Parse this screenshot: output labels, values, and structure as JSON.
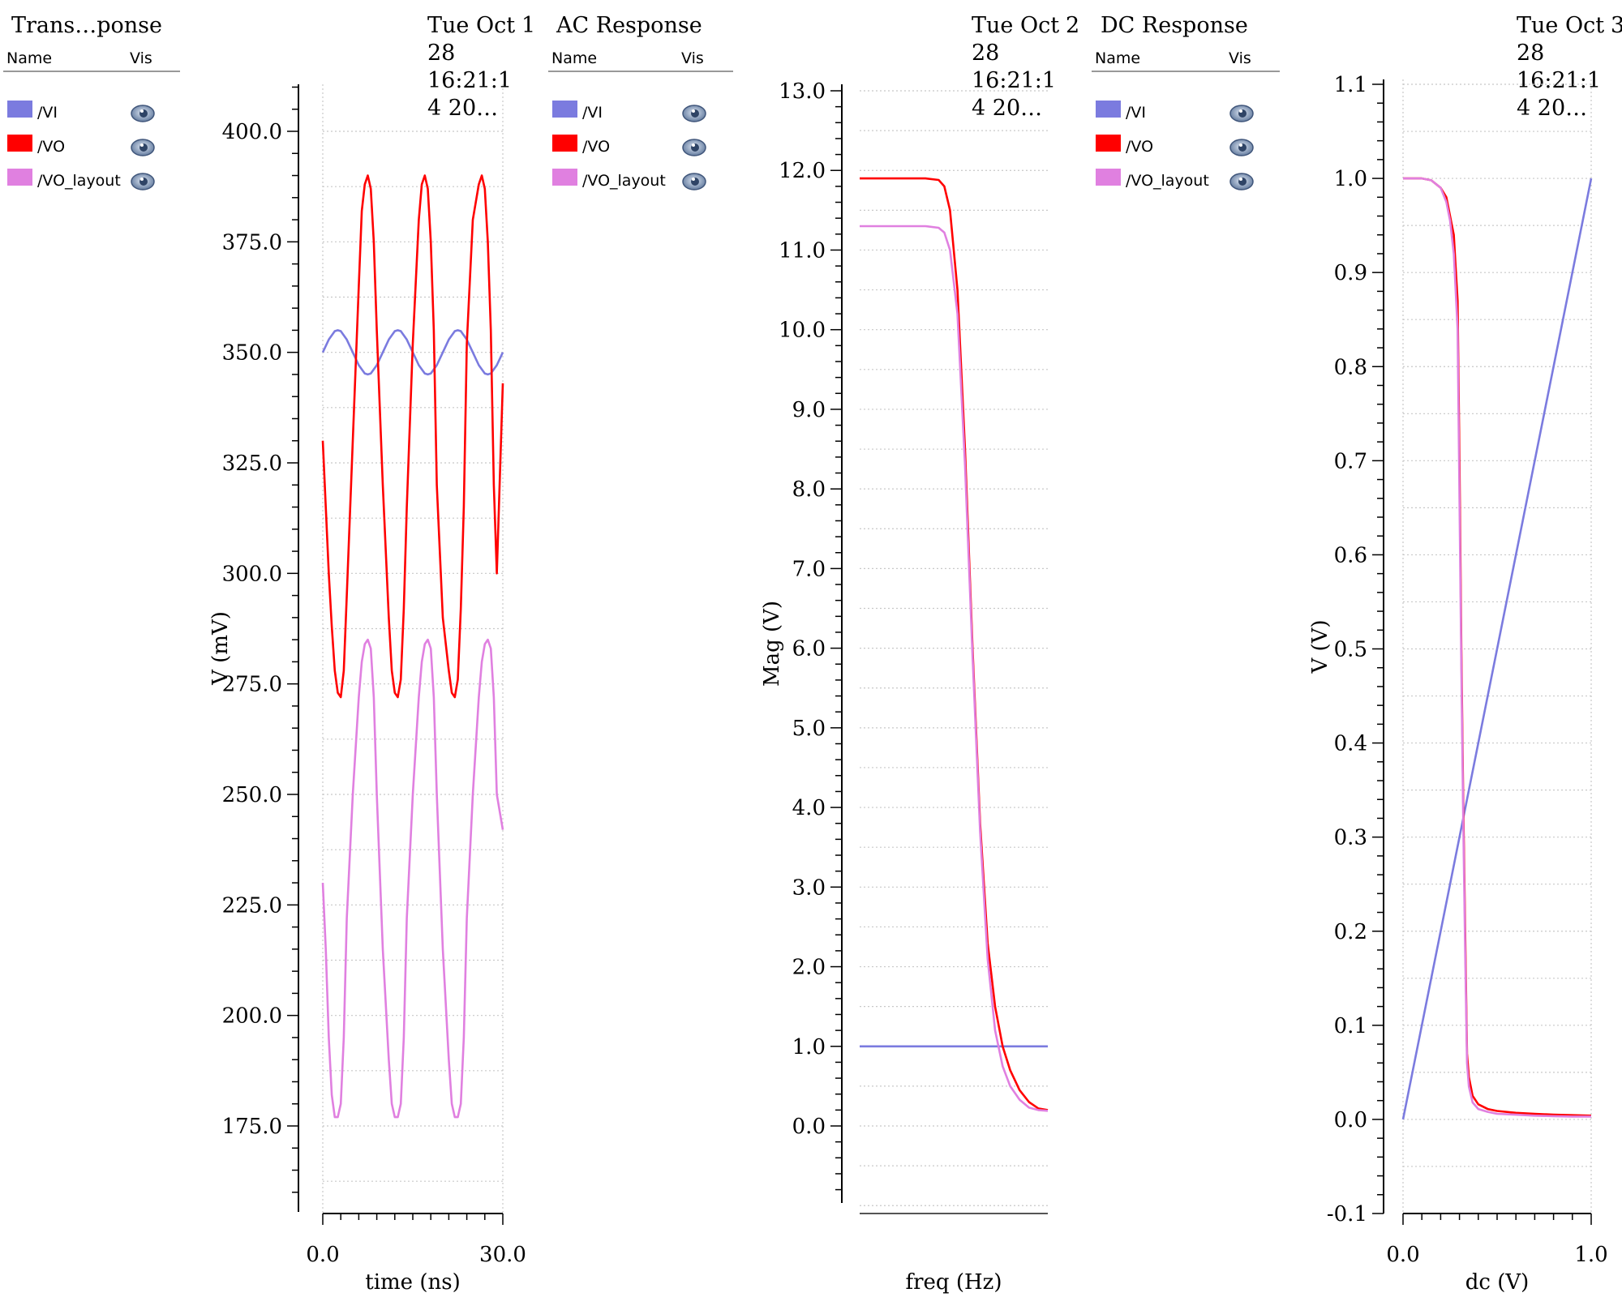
{
  "panels": [
    {
      "title": "Trans…ponse",
      "index": "1",
      "timestamp": [
        "Tue Oct",
        "28",
        "16:21:1",
        "4 20…"
      ],
      "legend": {
        "name_header": "Name",
        "vis_header": "Vis",
        "items": [
          {
            "label": "/VI",
            "color": "#7b7bdf",
            "icon": "eye-icon"
          },
          {
            "label": "/VO",
            "color": "#ff0000",
            "icon": "eye-icon"
          },
          {
            "label": "/VO_layout",
            "color": "#e080e0",
            "icon": "eye-icon"
          }
        ]
      }
    },
    {
      "title": "AC Response",
      "index": "2",
      "timestamp": [
        "Tue Oct",
        "28",
        "16:21:1",
        "4 20…"
      ],
      "legend": {
        "name_header": "Name",
        "vis_header": "Vis",
        "items": [
          {
            "label": "/VI",
            "color": "#7b7bdf",
            "icon": "eye-icon"
          },
          {
            "label": "/VO",
            "color": "#ff0000",
            "icon": "eye-icon"
          },
          {
            "label": "/VO_layout",
            "color": "#e080e0",
            "icon": "eye-icon"
          }
        ]
      }
    },
    {
      "title": "DC Response",
      "index": "3",
      "timestamp": [
        "Tue Oct",
        "28",
        "16:21:1",
        "4 20…"
      ],
      "legend": {
        "name_header": "Name",
        "vis_header": "Vis",
        "items": [
          {
            "label": "/VI",
            "color": "#7b7bdf",
            "icon": "eye-icon"
          },
          {
            "label": "/VO",
            "color": "#ff0000",
            "icon": "eye-icon"
          },
          {
            "label": "/VO_layout",
            "color": "#e080e0",
            "icon": "eye-icon"
          }
        ]
      }
    }
  ],
  "chart_data": [
    {
      "type": "line",
      "title": "Trans…ponse",
      "xlabel": "time (ns)",
      "ylabel": "V (mV)",
      "xlim": [
        0,
        30
      ],
      "ylim": [
        148,
        412
      ],
      "x_ticks": [
        {
          "v": 0,
          "label": "0.0"
        },
        {
          "v": 30,
          "label": "30.0"
        }
      ],
      "y_ticks": [
        {
          "v": 175,
          "label": "175.0"
        },
        {
          "v": 200,
          "label": "200.0"
        },
        {
          "v": 225,
          "label": "225.0"
        },
        {
          "v": 250,
          "label": "250.0"
        },
        {
          "v": 275,
          "label": "275.0"
        },
        {
          "v": 300,
          "label": "300.0"
        },
        {
          "v": 325,
          "label": "325.0"
        },
        {
          "v": 350,
          "label": "350.0"
        },
        {
          "v": 375,
          "label": "375.0"
        },
        {
          "v": 400,
          "label": "400.0"
        }
      ],
      "grid": true,
      "series": [
        {
          "name": "/VI",
          "color": "#7b7bdf",
          "x": [
            0,
            1,
            2,
            2.5,
            3,
            4,
            5,
            6,
            7,
            7.5,
            8,
            9,
            10,
            11,
            12,
            12.5,
            13,
            14,
            15,
            16,
            17,
            17.5,
            18,
            19,
            20,
            21,
            22,
            22.5,
            23,
            24,
            25,
            26,
            27,
            27.5,
            28,
            29,
            30
          ],
          "y": [
            350,
            352.9,
            354.8,
            355,
            354.8,
            352.9,
            350,
            347.1,
            345.2,
            345,
            345.2,
            347.1,
            350,
            352.9,
            354.8,
            355,
            354.8,
            352.9,
            350,
            347.1,
            345.2,
            345,
            345.2,
            347.1,
            350,
            352.9,
            354.8,
            355,
            354.8,
            352.9,
            350,
            347.1,
            345.2,
            345,
            345.2,
            347.1,
            350
          ]
        },
        {
          "name": "/VO",
          "color": "#ff0000",
          "x": [
            0,
            0.5,
            1,
            1.5,
            2,
            2.5,
            3,
            3.5,
            4,
            5,
            6,
            6.5,
            7,
            7.5,
            8,
            8.5,
            9,
            10,
            11,
            11.5,
            12,
            12.5,
            13,
            13.5,
            14,
            15,
            16,
            16.5,
            17,
            17.5,
            18,
            18.5,
            19,
            20,
            21,
            21.5,
            22,
            22.5,
            23,
            23.5,
            24,
            25,
            26,
            26.5,
            27,
            27.5,
            28,
            28.5,
            29,
            30
          ],
          "y": [
            330,
            315,
            300,
            288,
            278,
            273,
            272,
            278,
            295,
            330,
            365,
            382,
            388,
            390,
            387,
            375,
            355,
            320,
            290,
            278,
            273,
            272,
            276,
            292,
            315,
            352,
            380,
            388,
            390,
            387,
            375,
            355,
            320,
            290,
            278,
            273,
            272,
            276,
            292,
            315,
            352,
            380,
            388,
            390,
            387,
            375,
            355,
            320,
            300,
            343
          ]
        },
        {
          "name": "/VO_layout",
          "color": "#e080e0",
          "x": [
            0,
            0.5,
            1,
            1.5,
            2,
            2.5,
            3,
            3.5,
            4,
            5,
            6,
            6.5,
            7,
            7.5,
            8,
            8.5,
            9,
            10,
            11,
            11.5,
            12,
            12.5,
            13,
            13.5,
            14,
            15,
            16,
            16.5,
            17,
            17.5,
            18,
            18.5,
            19,
            20,
            21,
            21.5,
            22,
            22.5,
            23,
            23.5,
            24,
            25,
            26,
            26.5,
            27,
            27.5,
            28,
            28.5,
            29,
            30
          ],
          "y": [
            230,
            215,
            195,
            182,
            177,
            177,
            180,
            195,
            222,
            250,
            272,
            280,
            284,
            285,
            283,
            272,
            250,
            215,
            190,
            180,
            177,
            177,
            180,
            195,
            222,
            250,
            272,
            280,
            284,
            285,
            283,
            272,
            250,
            215,
            190,
            180,
            177,
            177,
            180,
            195,
            222,
            250,
            272,
            280,
            284,
            285,
            283,
            272,
            250,
            242
          ]
        }
      ]
    },
    {
      "type": "line",
      "title": "AC Response",
      "xlabel": "freq (Hz)",
      "ylabel": "Mag (V)",
      "xscale": "log",
      "ylim": [
        -1.0,
        13.1
      ],
      "y_ticks": [
        {
          "v": 0,
          "label": "0.0"
        },
        {
          "v": 1,
          "label": "1.0"
        },
        {
          "v": 2,
          "label": "2.0"
        },
        {
          "v": 3,
          "label": "3.0"
        },
        {
          "v": 4,
          "label": "4.0"
        },
        {
          "v": 5,
          "label": "5.0"
        },
        {
          "v": 6,
          "label": "6.0"
        },
        {
          "v": 7,
          "label": "7.0"
        },
        {
          "v": 8,
          "label": "8.0"
        },
        {
          "v": 9,
          "label": "9.0"
        },
        {
          "v": 10,
          "label": "10.0"
        },
        {
          "v": 11,
          "label": "11.0"
        },
        {
          "v": 12,
          "label": "12.0"
        },
        {
          "v": 13,
          "label": "13.0"
        }
      ],
      "grid": true,
      "series": [
        {
          "name": "/VI",
          "color": "#7b7bdf",
          "x": [
            0,
            1
          ],
          "y": [
            1.0,
            1.0
          ]
        },
        {
          "name": "/VO",
          "color": "#ff0000",
          "x": [
            0,
            0.2,
            0.35,
            0.42,
            0.45,
            0.48,
            0.52,
            0.56,
            0.6,
            0.64,
            0.68,
            0.72,
            0.76,
            0.8,
            0.85,
            0.9,
            0.95,
            1.0
          ],
          "y": [
            11.9,
            11.9,
            11.9,
            11.88,
            11.8,
            11.5,
            10.5,
            8.5,
            6.0,
            3.8,
            2.3,
            1.5,
            1.0,
            0.7,
            0.45,
            0.3,
            0.22,
            0.2
          ]
        },
        {
          "name": "/VO_layout",
          "color": "#e080e0",
          "x": [
            0,
            0.2,
            0.35,
            0.42,
            0.45,
            0.48,
            0.52,
            0.56,
            0.6,
            0.64,
            0.68,
            0.72,
            0.76,
            0.8,
            0.85,
            0.9,
            0.95,
            1.0
          ],
          "y": [
            11.3,
            11.3,
            11.3,
            11.28,
            11.22,
            11.0,
            10.2,
            8.3,
            5.9,
            3.7,
            2.1,
            1.2,
            0.75,
            0.5,
            0.33,
            0.23,
            0.2,
            0.19
          ]
        }
      ]
    },
    {
      "type": "line",
      "title": "DC Response",
      "xlabel": "dc (V)",
      "ylabel": "V (V)",
      "xlim": [
        0,
        1
      ],
      "ylim": [
        -0.1,
        1.1
      ],
      "x_ticks": [
        {
          "v": 0,
          "label": "0.0"
        },
        {
          "v": 1,
          "label": "1.0"
        }
      ],
      "y_ticks": [
        {
          "v": -0.1,
          "label": "-0.1"
        },
        {
          "v": 0.0,
          "label": "0.0"
        },
        {
          "v": 0.1,
          "label": "0.1"
        },
        {
          "v": 0.2,
          "label": "0.2"
        },
        {
          "v": 0.3,
          "label": "0.3"
        },
        {
          "v": 0.4,
          "label": "0.4"
        },
        {
          "v": 0.5,
          "label": "0.5"
        },
        {
          "v": 0.6,
          "label": "0.6"
        },
        {
          "v": 0.7,
          "label": "0.7"
        },
        {
          "v": 0.8,
          "label": "0.8"
        },
        {
          "v": 0.9,
          "label": "0.9"
        },
        {
          "v": 1.0,
          "label": "1.0"
        },
        {
          "v": 1.1,
          "label": "1.1"
        }
      ],
      "grid": true,
      "series": [
        {
          "name": "/VI",
          "color": "#7b7bdf",
          "x": [
            0,
            1
          ],
          "y": [
            0,
            1
          ]
        },
        {
          "name": "/VO",
          "color": "#ff0000",
          "x": [
            0,
            0.1,
            0.15,
            0.2,
            0.23,
            0.25,
            0.27,
            0.29,
            0.3,
            0.31,
            0.32,
            0.33,
            0.34,
            0.35,
            0.37,
            0.4,
            0.45,
            0.5,
            0.6,
            0.7,
            0.8,
            0.9,
            1.0
          ],
          "y": [
            1.0,
            1.0,
            0.998,
            0.99,
            0.98,
            0.96,
            0.94,
            0.87,
            0.7,
            0.5,
            0.34,
            0.2,
            0.07,
            0.045,
            0.025,
            0.016,
            0.011,
            0.009,
            0.007,
            0.006,
            0.005,
            0.0045,
            0.004
          ]
        },
        {
          "name": "/VO_layout",
          "color": "#e080e0",
          "x": [
            0,
            0.1,
            0.15,
            0.2,
            0.23,
            0.25,
            0.27,
            0.29,
            0.3,
            0.31,
            0.32,
            0.33,
            0.34,
            0.35,
            0.37,
            0.4,
            0.45,
            0.5,
            0.6,
            0.7,
            0.8,
            0.9,
            1.0
          ],
          "y": [
            1.0,
            1.0,
            0.998,
            0.99,
            0.975,
            0.955,
            0.92,
            0.84,
            0.66,
            0.48,
            0.32,
            0.18,
            0.06,
            0.035,
            0.018,
            0.011,
            0.008,
            0.006,
            0.005,
            0.004,
            0.0035,
            0.003,
            0.003
          ]
        }
      ]
    }
  ]
}
